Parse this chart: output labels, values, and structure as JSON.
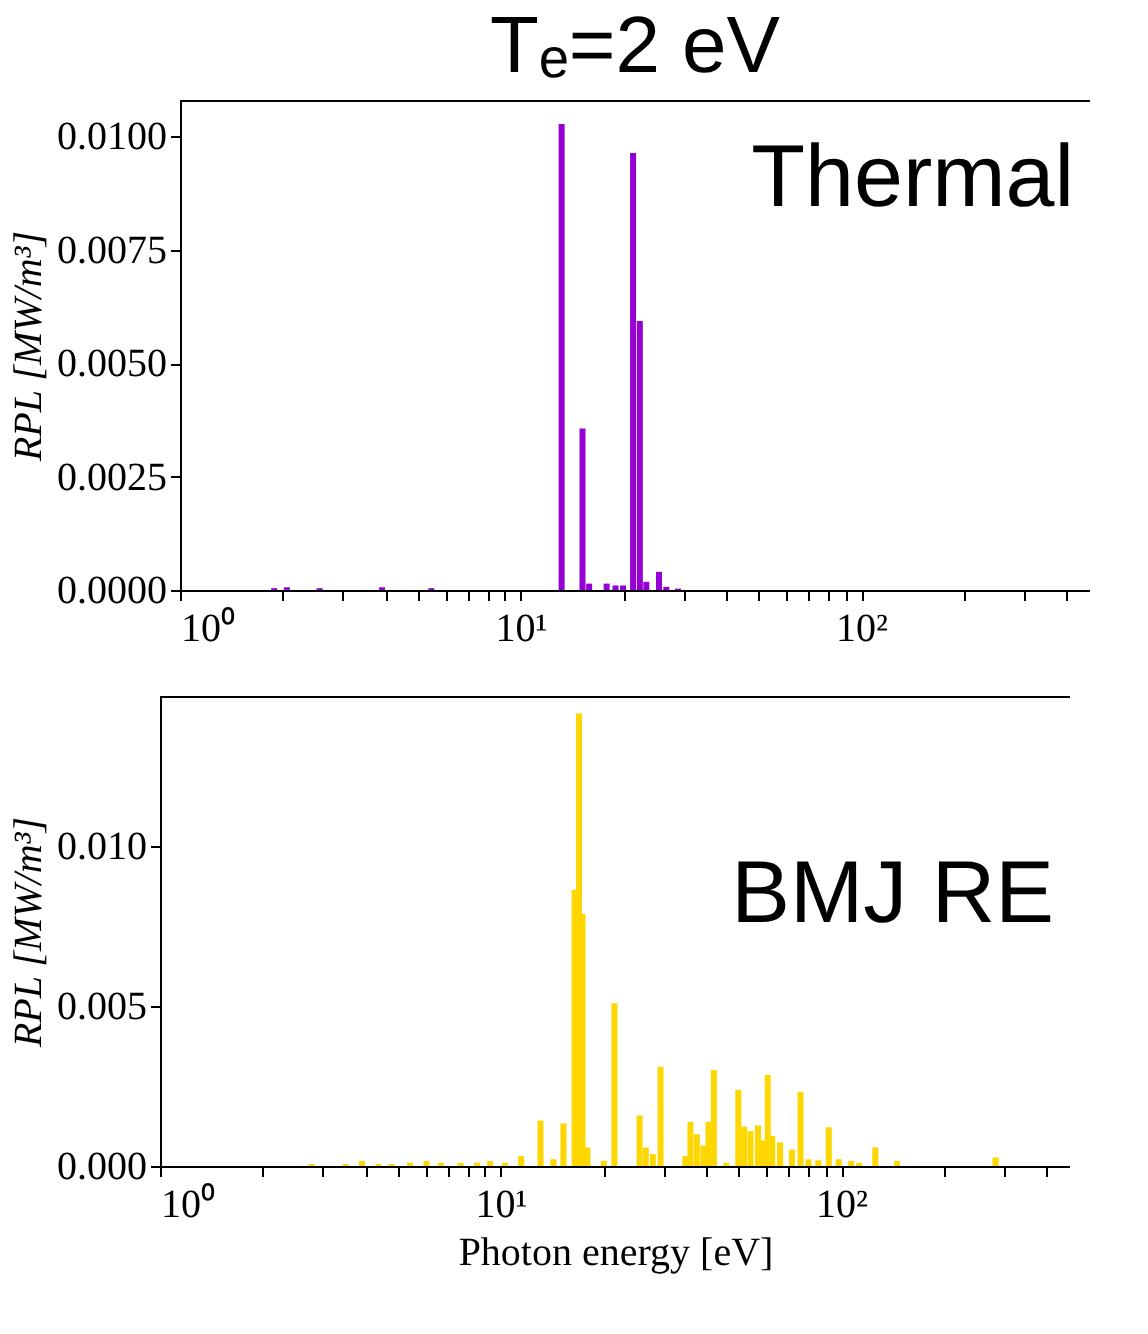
{
  "chart_data": [
    {
      "type": "bar",
      "title": "Tₑ=2 eV",
      "ylabel": "RPL [MW/m³]",
      "annotations": [
        "Thermal"
      ],
      "x": [
        1.89,
        2.06,
        2.57,
        3.92,
        5.47,
        13.2,
        15.2,
        15.9,
        17.9,
        19.0,
        20.0,
        21.4,
        22.4,
        23.4,
        25.5,
        26.8,
        29.0
      ],
      "series": [
        {
          "color": "#9400d3",
          "values": [
            4e-05,
            6e-05,
            4e-05,
            6e-05,
            4e-05,
            0.01027,
            0.00356,
            0.00014,
            0.00014,
            0.0001,
            0.0001,
            0.00963,
            0.00593,
            0.00018,
            0.0004,
            7e-05,
            3e-05
          ]
        }
      ],
      "xlim": [
        1,
        470
      ],
      "log": "x",
      "xticks": [
        {
          "value": 1,
          "label": "10⁰"
        },
        {
          "value": 2,
          "label": null
        },
        {
          "value": 3,
          "label": null
        },
        {
          "value": 4,
          "label": null
        },
        {
          "value": 5,
          "label": null
        },
        {
          "value": 6,
          "label": null
        },
        {
          "value": 7,
          "label": null
        },
        {
          "value": 8,
          "label": null
        },
        {
          "value": 9,
          "label": null
        },
        {
          "value": 10,
          "label": "10¹"
        },
        {
          "value": 20,
          "label": null
        },
        {
          "value": 30,
          "label": null
        },
        {
          "value": 40,
          "label": null
        },
        {
          "value": 50,
          "label": null
        },
        {
          "value": 60,
          "label": null
        },
        {
          "value": 70,
          "label": null
        },
        {
          "value": 80,
          "label": null
        },
        {
          "value": 90,
          "label": null
        },
        {
          "value": 100,
          "label": "10²"
        },
        {
          "value": 200,
          "label": null
        },
        {
          "value": 300,
          "label": null
        },
        {
          "value": 400,
          "label": null
        }
      ],
      "ylim": [
        0,
        0.0108
      ],
      "yticks": [
        {
          "value": 0,
          "label": "0.0000"
        },
        {
          "value": 0.0025,
          "label": "0.0025"
        },
        {
          "value": 0.005,
          "label": "0.0050"
        },
        {
          "value": 0.0075,
          "label": "0.0075"
        },
        {
          "value": 0.01,
          "label": "0.0100"
        }
      ]
    },
    {
      "type": "bar",
      "xlabel": "Photon energy [eV]",
      "ylabel": "RPL [MW/m³]",
      "annotations": [
        "BMJ RE"
      ],
      "x": [
        2.79,
        3.51,
        3.92,
        4.38,
        4.79,
        5.42,
        6.06,
        6.68,
        7.63,
        8.53,
        9.32,
        10.3,
        11.5,
        13.1,
        14.3,
        15.3,
        16.5,
        17.0,
        17.4,
        18.0,
        20.1,
        21.6,
        25.6,
        26.7,
        28.0,
        29.5,
        34.9,
        36.1,
        37.7,
        39.4,
        40.8,
        42.3,
        46.0,
        49.9,
        51.9,
        54.2,
        57.0,
        59.0,
        60.9,
        62.8,
        66.2,
        71.7,
        76.0,
        80.2,
        85.7,
        92.0,
        98.3,
        107,
        113,
        126,
        146,
        284
      ],
      "series": [
        {
          "color": "#ffd700",
          "values": [
            6e-05,
            6e-05,
            0.00016,
            6e-05,
            6e-05,
            0.0001,
            0.00016,
            0.0001,
            0.0001,
            0.0001,
            0.00016,
            0.0001,
            0.00031,
            0.00142,
            0.00021,
            0.00133,
            0.00864,
            0.01415,
            0.00788,
            0.00058,
            0.00016,
            0.00509,
            0.00158,
            0.00058,
            0.00037,
            0.0031,
            0.00031,
            0.00138,
            0.00099,
            0.00064,
            0.00138,
            0.003,
            0.0001,
            0.00238,
            0.00123,
            0.00109,
            0.00127,
            0.0008,
            0.00285,
            0.00094,
            0.00074,
            0.00051,
            0.00232,
            0.00021,
            0.00018,
            0.00121,
            0.00021,
            0.00016,
            0.0001,
            0.00058,
            0.00016,
            0.00027
          ]
        }
      ],
      "xlim": [
        1,
        470
      ],
      "log": "x",
      "xticks": [
        {
          "value": 1,
          "label": "10⁰"
        },
        {
          "value": 2,
          "label": null
        },
        {
          "value": 3,
          "label": null
        },
        {
          "value": 4,
          "label": null
        },
        {
          "value": 5,
          "label": null
        },
        {
          "value": 6,
          "label": null
        },
        {
          "value": 7,
          "label": null
        },
        {
          "value": 8,
          "label": null
        },
        {
          "value": 9,
          "label": null
        },
        {
          "value": 10,
          "label": "10¹"
        },
        {
          "value": 20,
          "label": null
        },
        {
          "value": 30,
          "label": null
        },
        {
          "value": 40,
          "label": null
        },
        {
          "value": 50,
          "label": null
        },
        {
          "value": 60,
          "label": null
        },
        {
          "value": 70,
          "label": null
        },
        {
          "value": 80,
          "label": null
        },
        {
          "value": 90,
          "label": null
        },
        {
          "value": 100,
          "label": "10²"
        },
        {
          "value": 200,
          "label": null
        },
        {
          "value": 300,
          "label": null
        },
        {
          "value": 400,
          "label": null
        }
      ],
      "ylim": [
        0,
        0.0147
      ],
      "yticks": [
        {
          "value": 0,
          "label": "0.000"
        },
        {
          "value": 0.005,
          "label": "0.005"
        },
        {
          "value": 0.01,
          "label": "0.010"
        }
      ]
    }
  ]
}
